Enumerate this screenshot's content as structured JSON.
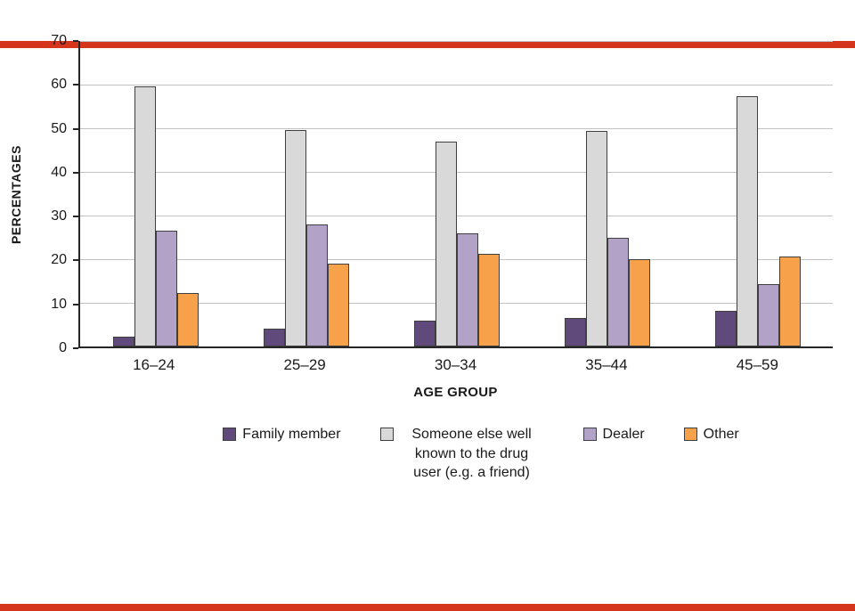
{
  "page": {
    "background": "#ffffff",
    "border_color": "#d4351c"
  },
  "chart_data": {
    "type": "bar",
    "xlabel": "AGE GROUP",
    "ylabel": "PERCENTAGES",
    "ylim": [
      0,
      70
    ],
    "yticks": [
      0,
      10,
      20,
      30,
      40,
      50,
      60,
      70
    ],
    "grid": true,
    "legend_position": "bottom",
    "categories": [
      "16–24",
      "25–29",
      "30–34",
      "35–44",
      "45–59"
    ],
    "series": [
      {
        "name": "Family member",
        "color": "#604a7b",
        "values": [
          2.3,
          4.0,
          6.0,
          6.5,
          8.2
        ]
      },
      {
        "name": "Someone else well known to the drug user (e.g. a friend)",
        "color": "#d9d9d9",
        "values": [
          59.5,
          49.5,
          47.0,
          49.3,
          57.3
        ]
      },
      {
        "name": "Dealer",
        "color": "#b3a2c7",
        "values": [
          26.5,
          28.0,
          26.0,
          24.8,
          14.3
        ]
      },
      {
        "name": "Other",
        "color": "#f7a24a",
        "values": [
          12.2,
          19.0,
          21.3,
          20.0,
          20.6
        ]
      }
    ],
    "bar_border_color": "#3f3f3f",
    "gridline_color": "#c3c3c3",
    "axis_color": "#262626"
  }
}
